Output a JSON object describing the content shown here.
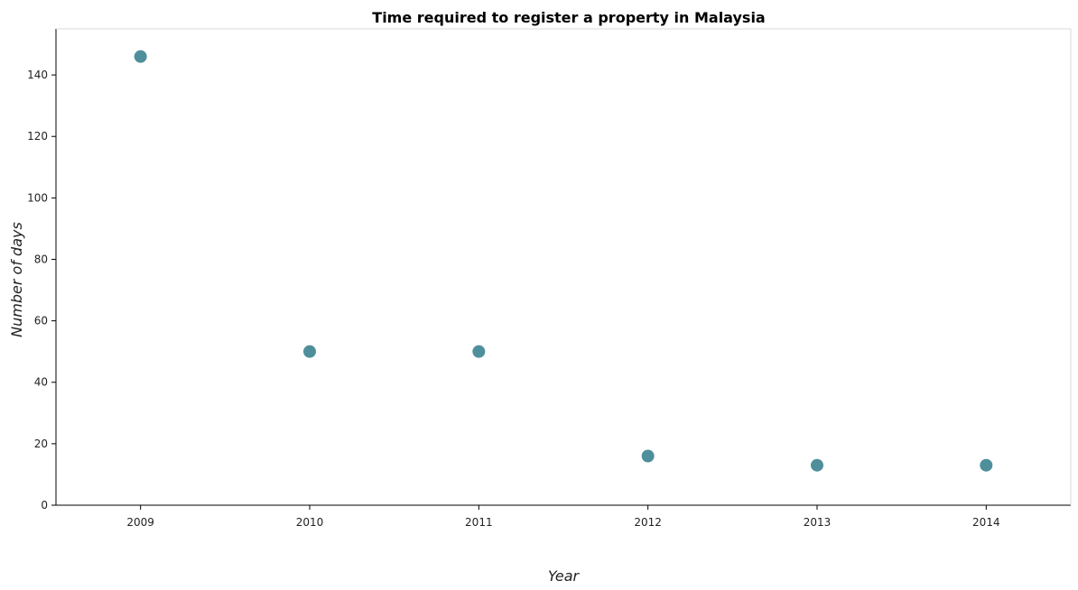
{
  "chart_data": {
    "type": "scatter",
    "title": "Time required to register a property in Malaysia",
    "xlabel": "Year",
    "ylabel": "Number of days",
    "categories": [
      "2009",
      "2010",
      "2011",
      "2012",
      "2013",
      "2014"
    ],
    "values": [
      146,
      50,
      50,
      16,
      13,
      13
    ],
    "ylim": [
      0,
      155
    ],
    "yticks": [
      0,
      20,
      40,
      60,
      80,
      100,
      120,
      140
    ],
    "grid": false,
    "legend": "none",
    "marker_color": "#4f8f9b"
  }
}
